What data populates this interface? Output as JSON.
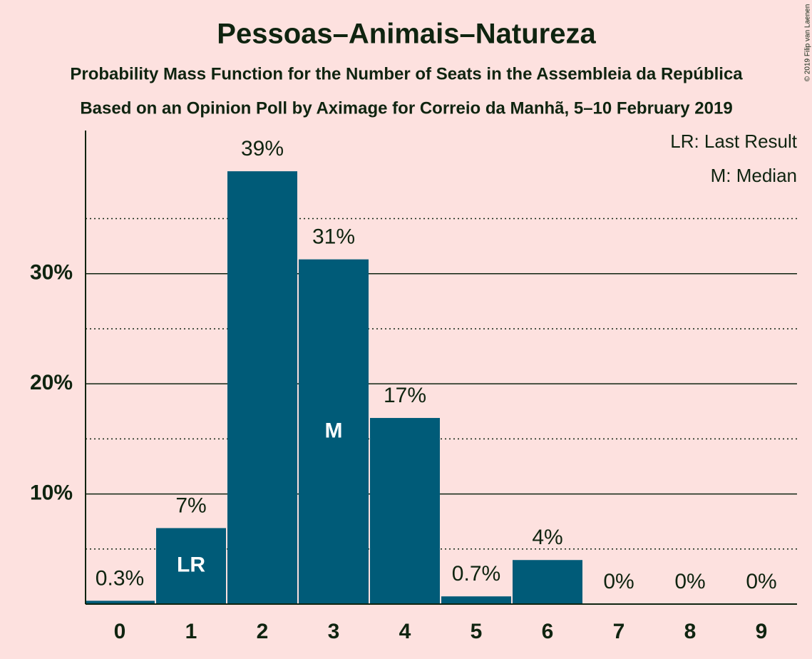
{
  "chart_data": {
    "type": "bar",
    "title": "Pessoas–Animais–Natureza",
    "subtitle": "Probability Mass Function for the Number of Seats in the Assembleia da República",
    "subtitle2": "Based on an Opinion Poll by Aximage for Correio da Manhã, 5–10 February 2019",
    "copyright": "© 2019 Filip van Laenen",
    "legend": [
      "LR: Last Result",
      "M: Median"
    ],
    "categories": [
      "0",
      "1",
      "2",
      "3",
      "4",
      "5",
      "6",
      "7",
      "8",
      "9"
    ],
    "values": [
      0.3,
      6.9,
      39.3,
      31.3,
      16.9,
      0.7,
      4.0,
      0,
      0,
      0
    ],
    "value_labels": [
      "0.3%",
      "7%",
      "39%",
      "31%",
      "17%",
      "0.7%",
      "4%",
      "0%",
      "0%",
      "0%"
    ],
    "inner_labels": [
      null,
      "LR",
      null,
      "M",
      null,
      null,
      null,
      null,
      null,
      null
    ],
    "color": "#005b78",
    "ylim": [
      0,
      43
    ],
    "yticks": [
      {
        "value": 10,
        "label": "10%"
      },
      {
        "value": 20,
        "label": "20%"
      },
      {
        "value": 30,
        "label": "30%"
      }
    ],
    "minor_yticks": [
      5,
      15,
      25,
      35
    ],
    "grid": true
  }
}
